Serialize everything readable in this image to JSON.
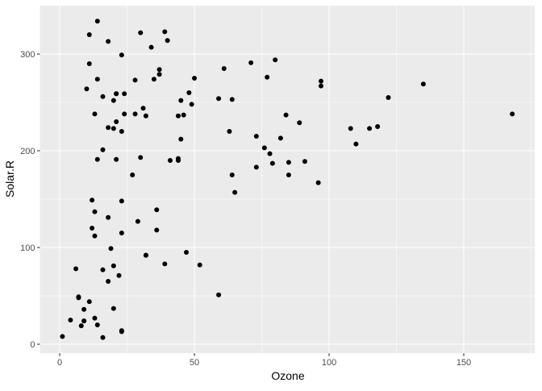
{
  "chart_data": {
    "type": "scatter",
    "xlabel": "Ozone",
    "ylabel": "Solar.R",
    "xlim": [
      -7.35,
      176.35
    ],
    "ylim": [
      -9.35,
      350.35
    ],
    "xticks": [
      0,
      50,
      100,
      150
    ],
    "yticks": [
      0,
      100,
      200,
      300
    ],
    "grid": true,
    "panel_background": "#EBEBEB",
    "grid_color": "#FFFFFF",
    "point_color": "#000000",
    "points": [
      [
        41,
        190
      ],
      [
        36,
        118
      ],
      [
        12,
        149
      ],
      [
        18,
        313
      ],
      [
        23,
        299
      ],
      [
        19,
        99
      ],
      [
        8,
        19
      ],
      [
        16,
        256
      ],
      [
        11,
        290
      ],
      [
        14,
        274
      ],
      [
        18,
        65
      ],
      [
        14,
        334
      ],
      [
        34,
        307
      ],
      [
        6,
        78
      ],
      [
        30,
        322
      ],
      [
        11,
        44
      ],
      [
        1,
        8
      ],
      [
        11,
        320
      ],
      [
        4,
        25
      ],
      [
        32,
        92
      ],
      [
        23,
        13
      ],
      [
        45,
        252
      ],
      [
        115,
        223
      ],
      [
        37,
        279
      ],
      [
        29,
        127
      ],
      [
        71,
        291
      ],
      [
        39,
        323
      ],
      [
        23,
        148
      ],
      [
        21,
        191
      ],
      [
        37,
        284
      ],
      [
        20,
        37
      ],
      [
        12,
        120
      ],
      [
        13,
        137
      ],
      [
        135,
        269
      ],
      [
        49,
        248
      ],
      [
        32,
        236
      ],
      [
        64,
        175
      ],
      [
        40,
        314
      ],
      [
        77,
        276
      ],
      [
        97,
        267
      ],
      [
        97,
        272
      ],
      [
        85,
        175
      ],
      [
        10,
        264
      ],
      [
        27,
        175
      ],
      [
        7,
        48
      ],
      [
        48,
        260
      ],
      [
        35,
        274
      ],
      [
        61,
        285
      ],
      [
        79,
        187
      ],
      [
        63,
        220
      ],
      [
        16,
        7
      ],
      [
        80,
        294
      ],
      [
        108,
        223
      ],
      [
        20,
        81
      ],
      [
        52,
        82
      ],
      [
        82,
        213
      ],
      [
        50,
        275
      ],
      [
        64,
        253
      ],
      [
        59,
        254
      ],
      [
        39,
        83
      ],
      [
        9,
        24
      ],
      [
        16,
        77
      ],
      [
        122,
        255
      ],
      [
        89,
        229
      ],
      [
        110,
        207
      ],
      [
        44,
        192
      ],
      [
        28,
        273
      ],
      [
        65,
        157
      ],
      [
        22,
        71
      ],
      [
        59,
        51
      ],
      [
        23,
        115
      ],
      [
        31,
        244
      ],
      [
        44,
        190
      ],
      [
        21,
        259
      ],
      [
        9,
        36
      ],
      [
        45,
        212
      ],
      [
        168,
        238
      ],
      [
        73,
        215
      ],
      [
        76,
        203
      ],
      [
        118,
        225
      ],
      [
        84,
        237
      ],
      [
        85,
        188
      ],
      [
        96,
        167
      ],
      [
        78,
        197
      ],
      [
        73,
        183
      ],
      [
        91,
        189
      ],
      [
        47,
        95
      ],
      [
        32,
        92
      ],
      [
        20,
        252
      ],
      [
        23,
        220
      ],
      [
        21,
        230
      ],
      [
        24,
        259
      ],
      [
        44,
        236
      ],
      [
        21,
        259
      ],
      [
        28,
        238
      ],
      [
        9,
        24
      ],
      [
        13,
        112
      ],
      [
        46,
        237
      ],
      [
        18,
        224
      ],
      [
        13,
        27
      ],
      [
        24,
        238
      ],
      [
        16,
        201
      ],
      [
        13,
        238
      ],
      [
        23,
        14
      ],
      [
        36,
        139
      ],
      [
        7,
        49
      ],
      [
        14,
        20
      ],
      [
        30,
        193
      ],
      [
        14,
        191
      ],
      [
        18,
        131
      ],
      [
        20,
        223
      ]
    ]
  }
}
